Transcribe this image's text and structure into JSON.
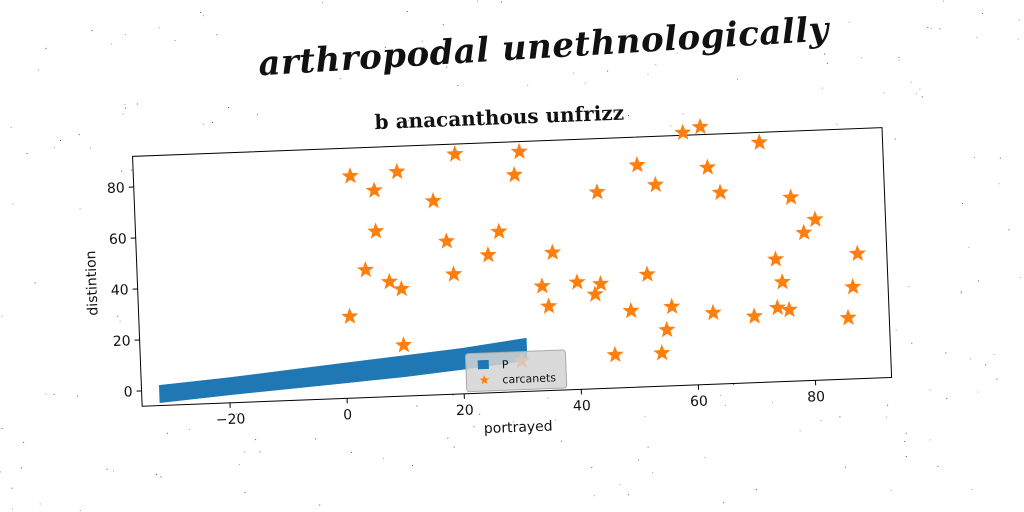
{
  "figure": {
    "suptitle": "arthropodal unethnologically"
  },
  "chart_data": {
    "type": "scatter",
    "title": "b anacanthous unfrizz",
    "xlabel": "portrayed",
    "ylabel": "distintion",
    "xlim": [
      -35,
      93
    ],
    "ylim": [
      -6,
      92
    ],
    "xticks": [
      -20,
      0,
      20,
      40,
      60,
      80
    ],
    "yticks": [
      0,
      20,
      40,
      60,
      80
    ],
    "grid": false,
    "legend_position": "lower-center",
    "series": [
      {
        "name": "P",
        "type": "band",
        "color": "#1f77b4",
        "x": [
          -32,
          -20,
          -10,
          0,
          10,
          20,
          31
        ],
        "y_low": [
          -5,
          -3,
          -1.5,
          0,
          1.5,
          3.5,
          6
        ],
        "y_high": [
          2,
          4,
          6,
          8,
          10,
          12,
          15
        ]
      },
      {
        "name": "carcanets",
        "type": "scatter",
        "marker": "star",
        "color": "#ff7f0e",
        "points": [
          [
            1,
            26
          ],
          [
            2,
            81
          ],
          [
            4,
            44
          ],
          [
            6,
            59
          ],
          [
            6,
            75
          ],
          [
            8,
            39
          ],
          [
            10,
            82
          ],
          [
            10,
            36
          ],
          [
            10,
            14
          ],
          [
            16,
            70
          ],
          [
            18,
            54
          ],
          [
            19,
            41
          ],
          [
            20,
            88
          ],
          [
            25,
            48
          ],
          [
            27,
            57
          ],
          [
            30,
            79
          ],
          [
            31,
            88
          ],
          [
            30,
            6
          ],
          [
            34,
            35
          ],
          [
            35,
            27
          ],
          [
            36,
            48
          ],
          [
            40,
            36
          ],
          [
            43,
            31
          ],
          [
            44,
            35
          ],
          [
            44,
            71
          ],
          [
            46,
            7
          ],
          [
            49,
            24
          ],
          [
            51,
            81
          ],
          [
            52,
            38
          ],
          [
            54,
            7
          ],
          [
            54,
            73
          ],
          [
            55,
            16
          ],
          [
            56,
            25
          ],
          [
            59,
            93
          ],
          [
            62,
            95
          ],
          [
            63,
            79
          ],
          [
            63,
            22
          ],
          [
            65,
            69
          ],
          [
            70,
            20
          ],
          [
            72,
            88
          ],
          [
            74,
            42
          ],
          [
            74,
            23
          ],
          [
            75,
            33
          ],
          [
            76,
            22
          ],
          [
            77,
            66
          ],
          [
            79,
            52
          ],
          [
            81,
            57
          ],
          [
            86,
            18
          ],
          [
            87,
            30
          ],
          [
            88,
            43
          ]
        ]
      }
    ]
  }
}
